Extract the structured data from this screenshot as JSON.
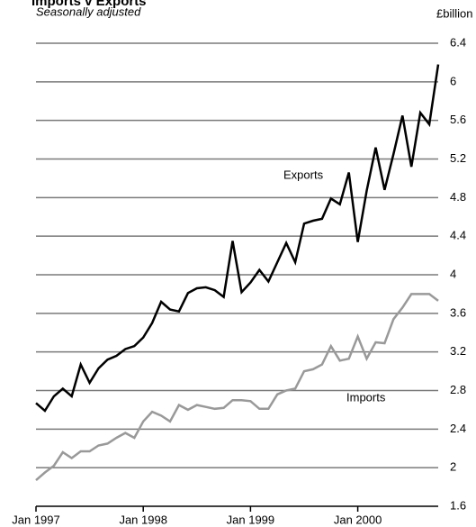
{
  "chart_data": {
    "type": "line",
    "title": "Imports v Exports",
    "subtitle": "Seasonally adjusted",
    "y_axis_label": "£billion",
    "categories": [
      "Jan 1997",
      null,
      null,
      null,
      null,
      null,
      null,
      null,
      null,
      null,
      null,
      null,
      "Jan 1998",
      null,
      null,
      null,
      null,
      null,
      null,
      null,
      null,
      null,
      null,
      null,
      "Jan 1999",
      null,
      null,
      null,
      null,
      null,
      null,
      null,
      null,
      null,
      null,
      null,
      "Jan 2000",
      null,
      null,
      null,
      null,
      null,
      null,
      null,
      null,
      null
    ],
    "series": [
      {
        "name": "Exports",
        "color": "#000000",
        "values": [
          2.67,
          2.59,
          2.74,
          2.82,
          2.74,
          3.07,
          2.88,
          3.03,
          3.12,
          3.16,
          3.23,
          3.26,
          3.35,
          3.5,
          3.72,
          3.64,
          3.62,
          3.81,
          3.86,
          3.87,
          3.84,
          3.77,
          4.35,
          3.82,
          3.92,
          4.05,
          3.93,
          4.13,
          4.33,
          4.13,
          4.53,
          4.56,
          4.58,
          4.79,
          4.73,
          5.06,
          4.34,
          4.87,
          5.32,
          4.88,
          5.25,
          5.65,
          5.12,
          5.68,
          5.56,
          6.18
        ]
      },
      {
        "name": "Imports",
        "color": "#999999",
        "values": [
          1.87,
          1.95,
          2.02,
          2.16,
          2.1,
          2.17,
          2.17,
          2.23,
          2.25,
          2.31,
          2.36,
          2.31,
          2.48,
          2.58,
          2.54,
          2.48,
          2.65,
          2.6,
          2.65,
          2.63,
          2.61,
          2.62,
          2.7,
          2.7,
          2.69,
          2.61,
          2.61,
          2.76,
          2.8,
          2.82,
          3.0,
          3.02,
          3.07,
          3.26,
          3.11,
          3.13,
          3.36,
          3.13,
          3.3,
          3.29,
          3.54,
          3.66,
          3.8,
          3.8,
          3.8,
          3.73
        ]
      }
    ],
    "ylim": [
      1.6,
      6.4
    ],
    "yticks": [
      1.6,
      2.0,
      2.4,
      2.8,
      3.2,
      3.6,
      4.0,
      4.4,
      4.8,
      5.2,
      5.6,
      6.0,
      6.4
    ],
    "grid": true
  }
}
